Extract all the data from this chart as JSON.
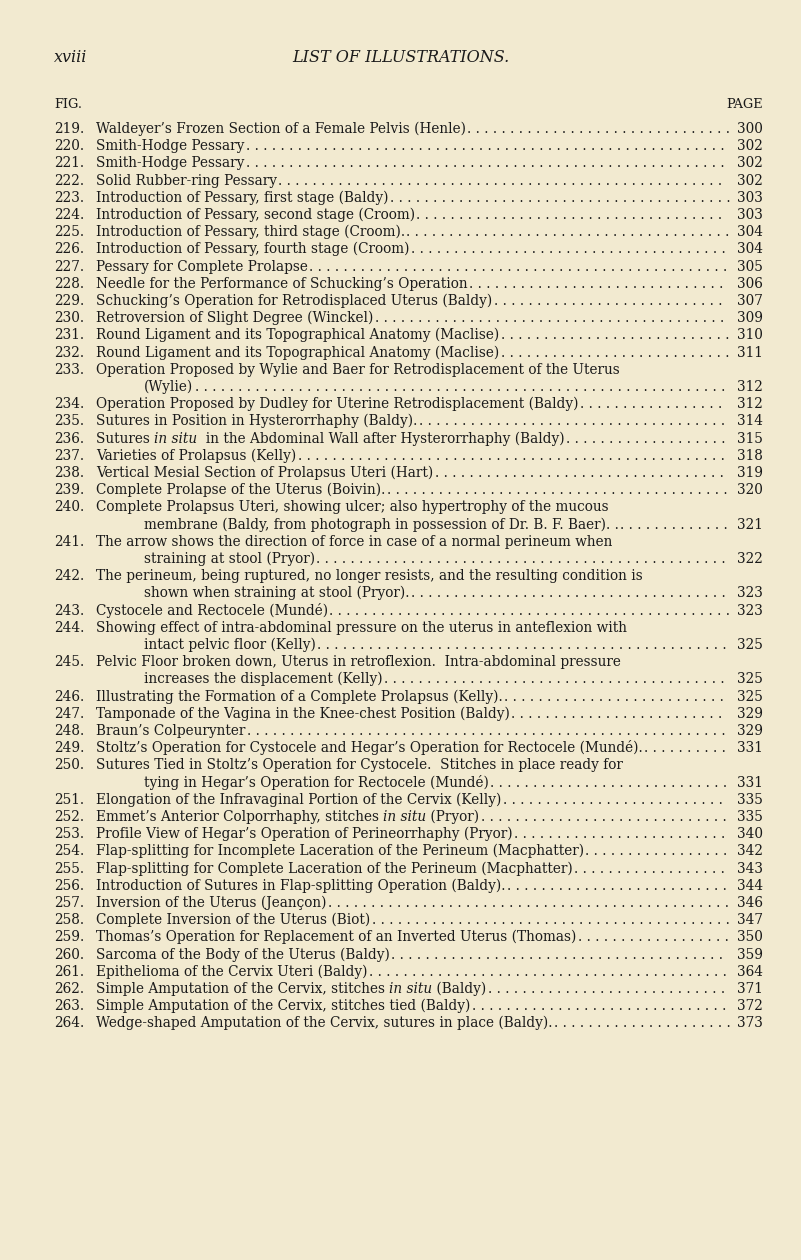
{
  "bg_color": "#f2ead0",
  "text_color": "#1a1a1a",
  "header_left": "xviii",
  "header_center": "LIST OF ILLUSTRATIONS.",
  "col_fig": "FIG.",
  "col_page": "PAGE",
  "entries": [
    {
      "fig": "219.",
      "text": "Waldeyer’s Frozen Section of a Female Pelvis (Henle)",
      "page": "300",
      "indent": 0
    },
    {
      "fig": "220.",
      "text": "Smith-Hodge Pessary",
      "page": "302",
      "indent": 0
    },
    {
      "fig": "221.",
      "text": "Smith-Hodge Pessary",
      "page": "302",
      "indent": 0
    },
    {
      "fig": "222.",
      "text": "Solid Rubber-ring Pessary",
      "page": "302",
      "indent": 0
    },
    {
      "fig": "223.",
      "text": "Introduction of Pessary, first stage (Baldy)",
      "page": "303",
      "indent": 0
    },
    {
      "fig": "224.",
      "text": "Introduction of Pessary, second stage (Croom)",
      "page": "303",
      "indent": 0
    },
    {
      "fig": "225.",
      "text": "Introduction of Pessary, third stage (Croom).",
      "page": "304",
      "indent": 0
    },
    {
      "fig": "226.",
      "text": "Introduction of Pessary, fourth stage (Croom)",
      "page": "304",
      "indent": 0
    },
    {
      "fig": "227.",
      "text": "Pessary for Complete Prolapse",
      "page": "305",
      "indent": 0
    },
    {
      "fig": "228.",
      "text": "Needle for the Performance of Schucking’s Operation",
      "page": "306",
      "indent": 0
    },
    {
      "fig": "229.",
      "text": "Schucking’s Operation for Retrodisplaced Uterus (Baldy)",
      "page": "307",
      "indent": 0
    },
    {
      "fig": "230.",
      "text": "Retroversion of Slight Degree (Winckel)",
      "page": "309",
      "indent": 0
    },
    {
      "fig": "231.",
      "text": "Round Ligament and its Topographical Anatomy (Maclise)",
      "page": "310",
      "indent": 0
    },
    {
      "fig": "232.",
      "text": "Round Ligament and its Topographical Anatomy (Maclise)",
      "page": "311",
      "indent": 0
    },
    {
      "fig": "233.",
      "text": "Operation Proposed by Wylie and Baer for Retrodisplacement of the Uterus",
      "page": "",
      "indent": 0
    },
    {
      "fig": "",
      "text": "(Wylie)",
      "page": "312",
      "indent": 1
    },
    {
      "fig": "234.",
      "text": "Operation Proposed by Dudley for Uterine Retrodisplacement (Baldy)",
      "page": "312",
      "indent": 0
    },
    {
      "fig": "235.",
      "text": "Sutures in Position in Hysterorrhaphy (Baldy).",
      "page": "314",
      "indent": 0
    },
    {
      "fig": "236.",
      "text": "Sutures [i]in situ[/i]  in the Abdominal Wall after Hysterorrhaphy (Baldy)",
      "page": "315",
      "indent": 0
    },
    {
      "fig": "237.",
      "text": "Varieties of Prolapsus (Kelly)",
      "page": "318",
      "indent": 0
    },
    {
      "fig": "238.",
      "text": "Vertical Mesial Section of Prolapsus Uteri (Hart)",
      "page": "319",
      "indent": 0
    },
    {
      "fig": "239.",
      "text": "Complete Prolapse of the Uterus (Boivin).",
      "page": "320",
      "indent": 0
    },
    {
      "fig": "240.",
      "text": "Complete Prolapsus Uteri, showing ulcer; also hypertrophy of the mucous",
      "page": "",
      "indent": 0
    },
    {
      "fig": "",
      "text": "membrane (Baldy, from photograph in possession of Dr. B. F. Baer). .",
      "page": "321",
      "indent": 1
    },
    {
      "fig": "241.",
      "text": "The arrow shows the direction of force in case of a normal perineum when",
      "page": "",
      "indent": 0
    },
    {
      "fig": "",
      "text": "straining at stool (Pryor)",
      "page": "322",
      "indent": 1
    },
    {
      "fig": "242.",
      "text": "The perineum, being ruptured, no longer resists, and the resulting condition is",
      "page": "",
      "indent": 0
    },
    {
      "fig": "",
      "text": "shown when straining at stool (Pryor).",
      "page": "323",
      "indent": 1
    },
    {
      "fig": "243.",
      "text": "Cystocele and Rectocele (Mundé)",
      "page": "323",
      "indent": 0
    },
    {
      "fig": "244.",
      "text": "Showing effect of intra-abdominal pressure on the uterus in anteflexion with",
      "page": "",
      "indent": 0
    },
    {
      "fig": "",
      "text": "intact pelvic floor (Kelly)",
      "page": "325",
      "indent": 1
    },
    {
      "fig": "245.",
      "text": "Pelvic Floor broken down, Uterus in retroflexion.  Intra-abdominal pressure",
      "page": "",
      "indent": 0
    },
    {
      "fig": "",
      "text": "increases the displacement (Kelly)",
      "page": "325",
      "indent": 1
    },
    {
      "fig": "246.",
      "text": "Illustrating the Formation of a Complete Prolapsus (Kelly).",
      "page": "325",
      "indent": 0
    },
    {
      "fig": "247.",
      "text": "Tamponade of the Vagina in the Knee-chest Position (Baldy)",
      "page": "329",
      "indent": 0
    },
    {
      "fig": "248.",
      "text": "Braun’s Colpeurynter",
      "page": "329",
      "indent": 0
    },
    {
      "fig": "249.",
      "text": "Stoltz’s Operation for Cystocele and Hegar’s Operation for Rectocele (Mundé).",
      "page": "331",
      "indent": 0
    },
    {
      "fig": "250.",
      "text": "Sutures Tied in Stoltz’s Operation for Cystocele.  Stitches in place ready for",
      "page": "",
      "indent": 0
    },
    {
      "fig": "",
      "text": "tying in Hegar’s Operation for Rectocele (Mundé)",
      "page": "331",
      "indent": 1
    },
    {
      "fig": "251.",
      "text": "Elongation of the Infravaginal Portion of the Cervix (Kelly)",
      "page": "335",
      "indent": 0
    },
    {
      "fig": "252.",
      "text": "Emmet’s Anterior Colporrhaphy, stitches [i]in situ[/i] (Pryor)",
      "page": "335",
      "indent": 0
    },
    {
      "fig": "253.",
      "text": "Profile View of Hegar’s Operation of Perineorrhaphy (Pryor)",
      "page": "340",
      "indent": 0
    },
    {
      "fig": "254.",
      "text": "Flap-splitting for Incomplete Laceration of the Perineum (Macphatter)",
      "page": "342",
      "indent": 0
    },
    {
      "fig": "255.",
      "text": "Flap-splitting for Complete Laceration of the Perineum (Macphatter)",
      "page": "343",
      "indent": 0
    },
    {
      "fig": "256.",
      "text": "Introduction of Sutures in Flap-splitting Operation (Baldy).",
      "page": "344",
      "indent": 0
    },
    {
      "fig": "257.",
      "text": "Inversion of the Uterus (Jeançon)",
      "page": "346",
      "indent": 0
    },
    {
      "fig": "258.",
      "text": "Complete Inversion of the Uterus (Biot)",
      "page": "347",
      "indent": 0
    },
    {
      "fig": "259.",
      "text": "Thomas’s Operation for Replacement of an Inverted Uterus (Thomas)",
      "page": "350",
      "indent": 0
    },
    {
      "fig": "260.",
      "text": "Sarcoma of the Body of the Uterus (Baldy)",
      "page": "359",
      "indent": 0
    },
    {
      "fig": "261.",
      "text": "Epithelioma of the Cervix Uteri (Baldy)",
      "page": "364",
      "indent": 0
    },
    {
      "fig": "262.",
      "text": "Simple Amputation of the Cervix, stitches [i]in situ[/i] (Baldy)",
      "page": "371",
      "indent": 0
    },
    {
      "fig": "263.",
      "text": "Simple Amputation of the Cervix, stitches tied (Baldy)",
      "page": "372",
      "indent": 0
    },
    {
      "fig": "264.",
      "text": "Wedge-shaped Amputation of the Cervix, sutures in place (Baldy).",
      "page": "373",
      "indent": 0
    }
  ]
}
